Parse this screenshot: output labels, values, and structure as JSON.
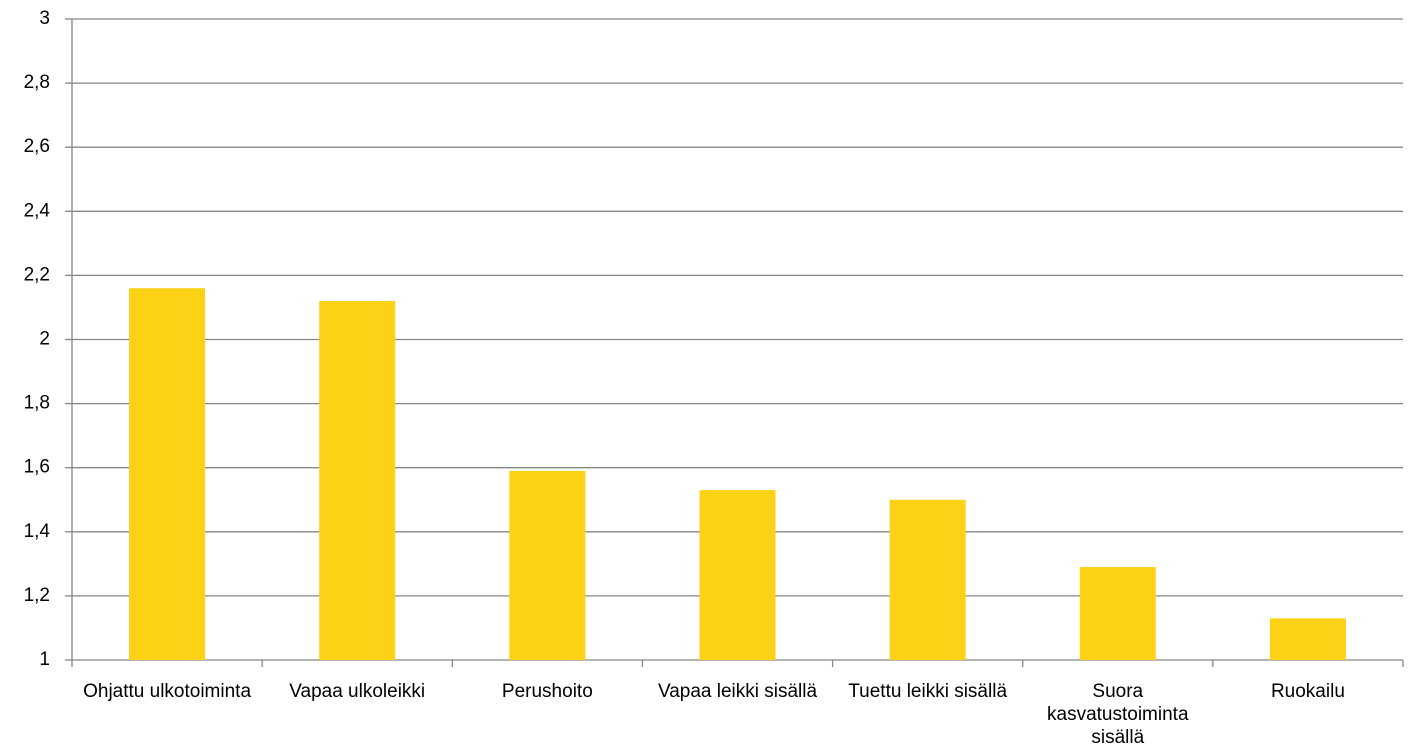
{
  "chart_data": {
    "type": "bar",
    "categories": [
      "Ohjattu ulkotoiminta",
      "Vapaa ulkoleikki",
      "Perushoito",
      "Vapaa leikki sisällä",
      "Tuettu leikki sisällä",
      "Suora kasvatustoiminta sisällä",
      "Ruokailu"
    ],
    "values": [
      2.16,
      2.12,
      1.59,
      1.53,
      1.5,
      1.29,
      1.13
    ],
    "color": "#fcd116",
    "ylim": [
      1,
      3
    ],
    "yticks": [
      1,
      {
        "value": 1.2,
        "label": "1,2"
      },
      {
        "value": 1.4,
        "label": "1,4"
      },
      {
        "value": 1.6,
        "label": "1,6"
      },
      {
        "value": 1.8,
        "label": "1,8"
      },
      2,
      {
        "value": 2.2,
        "label": "2,2"
      },
      {
        "value": 2.4,
        "label": "2,4"
      },
      {
        "value": 2.6,
        "label": "2,6"
      },
      {
        "value": 2.8,
        "label": "2,8"
      },
      3
    ],
    "grid": true
  }
}
